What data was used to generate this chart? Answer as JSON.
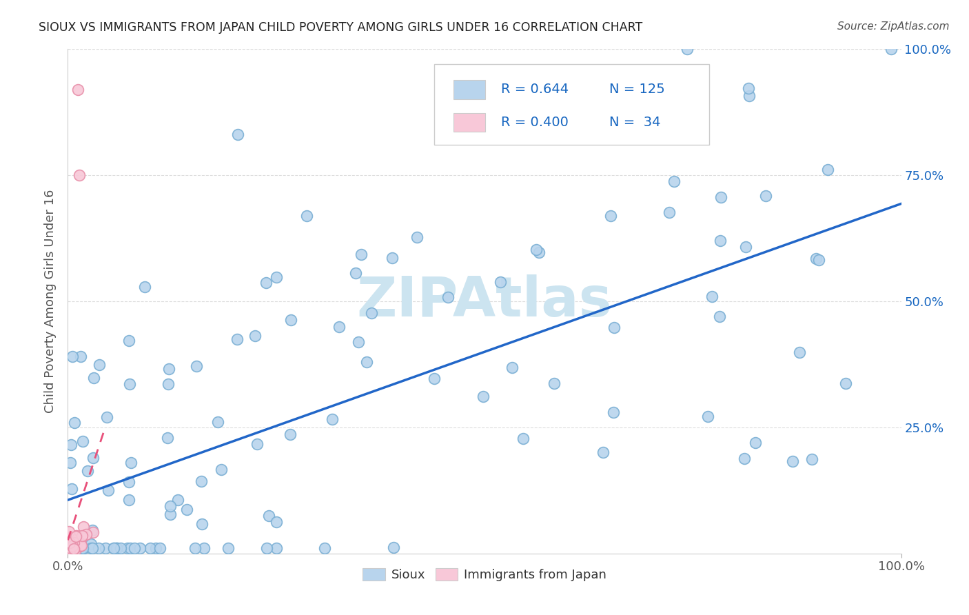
{
  "title": "SIOUX VS IMMIGRANTS FROM JAPAN CHILD POVERTY AMONG GIRLS UNDER 16 CORRELATION CHART",
  "source": "Source: ZipAtlas.com",
  "ylabel": "Child Poverty Among Girls Under 16",
  "sioux_R": 0.644,
  "sioux_N": 125,
  "japan_R": 0.4,
  "japan_N": 34,
  "sioux_color": "#b8d4ed",
  "sioux_edge_color": "#7aafd4",
  "sioux_line_color": "#2166c8",
  "japan_color": "#f8c8d8",
  "japan_edge_color": "#e890aa",
  "japan_line_color": "#e8507a",
  "watermark_color": "#cce4f0",
  "title_color": "#222222",
  "source_color": "#555555",
  "ylabel_color": "#555555",
  "tick_label_color": "#555555",
  "right_tick_color": "#1565C0",
  "legend_text_color": "#1565C0",
  "grid_color": "#dddddd",
  "legend_border_color": "#cccccc"
}
